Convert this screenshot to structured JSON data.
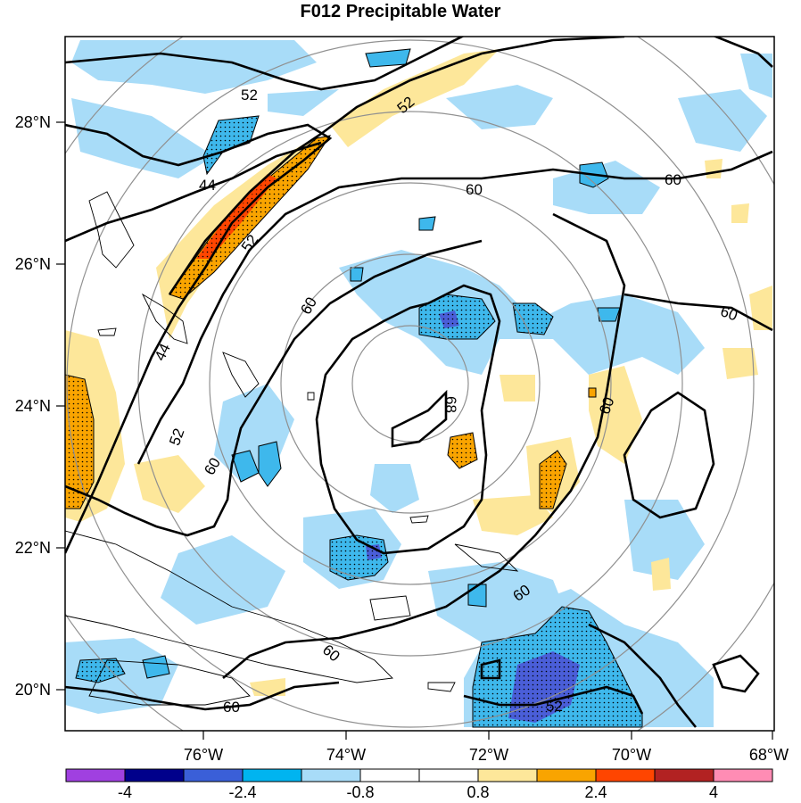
{
  "title": "F012 Precipitable Water",
  "lat_labels": [
    "28°N",
    "26°N",
    "24°N",
    "22°N",
    "20°N"
  ],
  "lon_labels": [
    "76°W",
    "74°W",
    "72°W",
    "70°W",
    "68°W"
  ],
  "contour_labels": [
    "52",
    "52",
    "44",
    "52",
    "44",
    "60",
    "60",
    "60",
    "60",
    "68",
    "52",
    "60",
    "60",
    "60",
    "60",
    "52"
  ],
  "colorbar": {
    "labels": [
      "-4",
      "-2.4",
      "-0.8",
      "0.8",
      "2.4",
      "4"
    ],
    "colors": [
      "#a040e0",
      "#00008b",
      "#3a5fd8",
      "#00b4f0",
      "#a8dcf8",
      "#ffffff",
      "#ffffff",
      "#fde79a",
      "#f9a400",
      "#ff4500",
      "#b22222",
      "#ff8cb4"
    ]
  },
  "colors": {
    "light_blue": "#a8dcf8",
    "blue": "#3eb8ec",
    "dark_blue": "#4a5ed8",
    "light_yellow": "#fde79a",
    "orange": "#f9a400",
    "red_orange": "#ff4500",
    "range_ring": "#909090"
  }
}
